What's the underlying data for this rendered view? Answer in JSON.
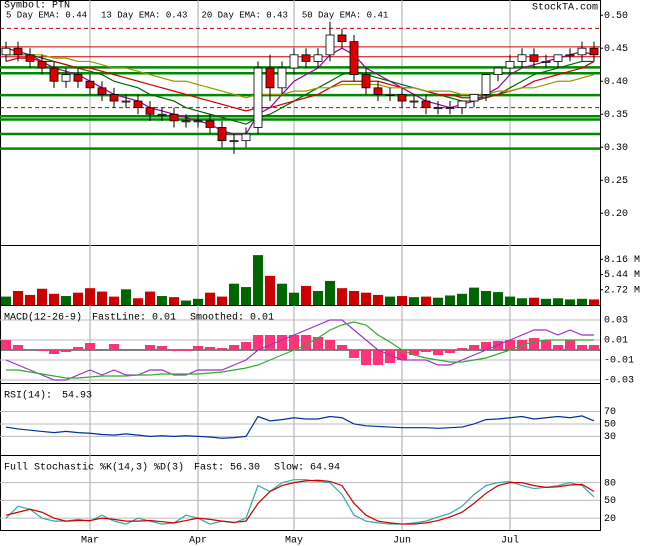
{
  "chart_data": [
    {
      "type": "candlestick",
      "title": "Symbol: PTN",
      "source": "StockTA.com",
      "grid": false,
      "up_color": "#ffffff",
      "down_color": "#dd0000",
      "ylim": [
        0.152,
        0.523
      ],
      "yticks": [
        {
          "value": 0.5,
          "label": "0.50"
        },
        0.45,
        {
          "value": 0.4,
          "label": "0.40"
        },
        0.35,
        {
          "value": 0.3,
          "label": "0.30"
        },
        0.25,
        {
          "value": 0.2,
          "label": "0.20"
        }
      ],
      "open": [
        0.44,
        0.45,
        0.44,
        0.43,
        0.42,
        0.4,
        0.41,
        0.4,
        0.39,
        0.38,
        0.37,
        0.37,
        0.36,
        0.35,
        0.35,
        0.34,
        0.34,
        0.34,
        0.33,
        0.31,
        0.31,
        0.33,
        0.42,
        0.39,
        0.42,
        0.44,
        0.43,
        0.44,
        0.47,
        0.46,
        0.41,
        0.39,
        0.38,
        0.38,
        0.37,
        0.37,
        0.36,
        0.36,
        0.36,
        0.37,
        0.38,
        0.41,
        0.42,
        0.43,
        0.44,
        0.43,
        0.43,
        0.44,
        0.44,
        0.45
      ],
      "high": [
        0.46,
        0.46,
        0.45,
        0.44,
        0.43,
        0.42,
        0.42,
        0.41,
        0.4,
        0.39,
        0.38,
        0.38,
        0.37,
        0.36,
        0.36,
        0.35,
        0.35,
        0.35,
        0.34,
        0.32,
        0.33,
        0.43,
        0.44,
        0.43,
        0.45,
        0.45,
        0.45,
        0.49,
        0.48,
        0.47,
        0.42,
        0.4,
        0.39,
        0.39,
        0.38,
        0.38,
        0.37,
        0.37,
        0.37,
        0.38,
        0.41,
        0.42,
        0.44,
        0.45,
        0.45,
        0.44,
        0.44,
        0.45,
        0.46,
        0.46
      ],
      "low": [
        0.43,
        0.43,
        0.42,
        0.41,
        0.39,
        0.39,
        0.39,
        0.38,
        0.37,
        0.36,
        0.36,
        0.35,
        0.34,
        0.34,
        0.33,
        0.33,
        0.33,
        0.32,
        0.3,
        0.29,
        0.3,
        0.32,
        0.37,
        0.38,
        0.41,
        0.42,
        0.42,
        0.43,
        0.45,
        0.4,
        0.38,
        0.37,
        0.37,
        0.36,
        0.36,
        0.35,
        0.35,
        0.35,
        0.35,
        0.36,
        0.37,
        0.4,
        0.41,
        0.42,
        0.42,
        0.42,
        0.42,
        0.43,
        0.43,
        0.43
      ],
      "close": [
        0.45,
        0.44,
        0.43,
        0.42,
        0.4,
        0.41,
        0.4,
        0.39,
        0.38,
        0.37,
        0.37,
        0.36,
        0.35,
        0.35,
        0.34,
        0.34,
        0.34,
        0.33,
        0.31,
        0.31,
        0.32,
        0.42,
        0.39,
        0.42,
        0.44,
        0.43,
        0.44,
        0.47,
        0.46,
        0.41,
        0.39,
        0.38,
        0.38,
        0.37,
        0.37,
        0.36,
        0.36,
        0.36,
        0.37,
        0.38,
        0.41,
        0.42,
        0.43,
        0.44,
        0.43,
        0.43,
        0.44,
        0.44,
        0.45,
        0.44
      ],
      "levels": [
        {
          "value": 0.48,
          "color": "#cc0000",
          "dash": true
        },
        {
          "value": 0.452,
          "color": "#cc0000",
          "dash": false
        },
        {
          "value": 0.437,
          "color": "#cc0000",
          "dash": false
        },
        {
          "value": 0.36,
          "color": "#cc0000",
          "dash": true
        },
        {
          "value": 0.421,
          "color": "#008800",
          "dash": false
        },
        {
          "value": 0.412,
          "color": "#008800",
          "dash": false
        },
        {
          "value": 0.379,
          "color": "#008800",
          "dash": false
        },
        {
          "value": 0.347,
          "color": "#008800",
          "dash": false
        },
        {
          "value": 0.342,
          "color": "#008800",
          "dash": false
        },
        {
          "value": 0.32,
          "color": "#008800",
          "dash": false
        },
        {
          "value": 0.298,
          "color": "#008800",
          "dash": false
        }
      ],
      "series": [
        {
          "name": "5 Day EMA: 0.44",
          "color": "#990099",
          "values": [
            0.45,
            0.445,
            0.44,
            0.43,
            0.42,
            0.415,
            0.41,
            0.4,
            0.39,
            0.38,
            0.375,
            0.37,
            0.36,
            0.355,
            0.35,
            0.345,
            0.34,
            0.335,
            0.325,
            0.32,
            0.32,
            0.35,
            0.36,
            0.38,
            0.4,
            0.41,
            0.42,
            0.44,
            0.45,
            0.44,
            0.42,
            0.41,
            0.4,
            0.39,
            0.38,
            0.37,
            0.365,
            0.36,
            0.365,
            0.37,
            0.38,
            0.39,
            0.41,
            0.42,
            0.425,
            0.43,
            0.435,
            0.44,
            0.445,
            0.44
          ]
        },
        {
          "name": "13 Day EMA: 0.43",
          "color": "#006600",
          "values": [
            0.44,
            0.44,
            0.44,
            0.435,
            0.43,
            0.425,
            0.42,
            0.415,
            0.41,
            0.4,
            0.395,
            0.39,
            0.38,
            0.375,
            0.37,
            0.36,
            0.355,
            0.35,
            0.345,
            0.34,
            0.335,
            0.345,
            0.35,
            0.36,
            0.37,
            0.38,
            0.39,
            0.4,
            0.41,
            0.415,
            0.41,
            0.405,
            0.4,
            0.395,
            0.39,
            0.385,
            0.38,
            0.375,
            0.37,
            0.37,
            0.375,
            0.38,
            0.39,
            0.4,
            0.41,
            0.415,
            0.42,
            0.425,
            0.43,
            0.43
          ]
        },
        {
          "name": "20 Day EMA: 0.43",
          "color": "#cc0000",
          "values": [
            0.43,
            0.435,
            0.435,
            0.43,
            0.43,
            0.425,
            0.42,
            0.42,
            0.415,
            0.41,
            0.405,
            0.4,
            0.395,
            0.39,
            0.385,
            0.38,
            0.375,
            0.37,
            0.365,
            0.36,
            0.355,
            0.36,
            0.36,
            0.365,
            0.37,
            0.375,
            0.38,
            0.39,
            0.4,
            0.4,
            0.4,
            0.4,
            0.395,
            0.39,
            0.39,
            0.385,
            0.38,
            0.38,
            0.375,
            0.375,
            0.375,
            0.38,
            0.385,
            0.39,
            0.4,
            0.405,
            0.41,
            0.415,
            0.42,
            0.43
          ]
        },
        {
          "name": "50 Day EMA: 0.41",
          "color": "#999900",
          "values": [
            0.44,
            0.44,
            0.44,
            0.44,
            0.435,
            0.435,
            0.43,
            0.43,
            0.425,
            0.42,
            0.42,
            0.415,
            0.41,
            0.405,
            0.4,
            0.4,
            0.395,
            0.39,
            0.385,
            0.38,
            0.375,
            0.38,
            0.38,
            0.38,
            0.385,
            0.385,
            0.39,
            0.39,
            0.395,
            0.395,
            0.395,
            0.395,
            0.39,
            0.39,
            0.39,
            0.385,
            0.385,
            0.385,
            0.38,
            0.38,
            0.38,
            0.385,
            0.385,
            0.39,
            0.39,
            0.395,
            0.4,
            0.4,
            0.405,
            0.41
          ]
        }
      ]
    },
    {
      "type": "bar",
      "grid": false,
      "up_color": "#006600",
      "down_color": "#cc0000",
      "ylim": [
        0,
        10.71
      ],
      "yticks": [
        {
          "value": 8.16,
          "label": "8.16 M"
        },
        {
          "value": 5.44,
          "label": "5.44 M"
        },
        {
          "value": 2.72,
          "label": "2.72 M"
        }
      ],
      "values": [
        1.5,
        2.5,
        1.8,
        2.9,
        2,
        1.6,
        2.2,
        3,
        2.4,
        1.5,
        2.8,
        1.2,
        2.4,
        1.6,
        1.4,
        0.8,
        1.1,
        2.2,
        1.5,
        3.8,
        3.2,
        8.9,
        5.2,
        3.8,
        2.2,
        3.4,
        2.5,
        4.3,
        3,
        2.5,
        2.2,
        1.8,
        1.5,
        1.6,
        1.4,
        1.5,
        1.3,
        1.7,
        2,
        3.1,
        2.5,
        2.3,
        1.5,
        1.2,
        1.3,
        1.1,
        1.2,
        1.0,
        1.1,
        1.0
      ]
    },
    {
      "type": "line",
      "title": "MACD(12-26-9)",
      "grid": true,
      "ylim": [
        -0.033,
        0.045
      ],
      "yticks": [
        0.03,
        0.01,
        -0.01,
        -0.03
      ],
      "histogram": {
        "color": "#ff3377",
        "values": [
          0.01,
          0.005,
          0,
          -0.001,
          -0.004,
          -0.002,
          0.003,
          0.007,
          0.001,
          0.006,
          0.001,
          0,
          0.005,
          0.004,
          -0.001,
          -0.001,
          0.004,
          0.003,
          0.002,
          0.005,
          0.008,
          0.015,
          0.015,
          0.015,
          0.015,
          0.015,
          0.013,
          0.01,
          0.005,
          -0.008,
          -0.015,
          -0.015,
          -0.013,
          -0.01,
          -0.005,
          -0.002,
          -0.005,
          -0.003,
          0.002,
          0.005,
          0.008,
          0.009,
          0.01,
          0.01,
          0.012,
          0.01,
          0.005,
          0.01,
          0.005,
          0.005
        ]
      },
      "series": [
        {
          "name": "FastLine: 0.01",
          "color": "#9933cc",
          "values": [
            -0.01,
            -0.015,
            -0.02,
            -0.025,
            -0.03,
            -0.03,
            -0.025,
            -0.02,
            -0.025,
            -0.02,
            -0.025,
            -0.025,
            -0.02,
            -0.02,
            -0.025,
            -0.025,
            -0.02,
            -0.02,
            -0.02,
            -0.015,
            -0.01,
            0.0,
            0.005,
            0.01,
            0.015,
            0.02,
            0.025,
            0.03,
            0.03,
            0.02,
            0.01,
            0.0,
            -0.005,
            -0.01,
            -0.01,
            -0.01,
            -0.015,
            -0.015,
            -0.01,
            -0.005,
            0.0,
            0.005,
            0.01,
            0.015,
            0.02,
            0.02,
            0.015,
            0.02,
            0.015,
            0.015
          ]
        },
        {
          "name": "Smoothed: 0.01",
          "color": "#33aa33",
          "values": [
            -0.02,
            -0.02,
            -0.022,
            -0.024,
            -0.026,
            -0.028,
            -0.028,
            -0.027,
            -0.026,
            -0.026,
            -0.026,
            -0.025,
            -0.025,
            -0.024,
            -0.024,
            -0.024,
            -0.024,
            -0.023,
            -0.022,
            -0.02,
            -0.018,
            -0.015,
            -0.01,
            -0.005,
            0.0,
            0.005,
            0.012,
            0.02,
            0.025,
            0.028,
            0.025,
            0.015,
            0.008,
            0.0,
            -0.005,
            -0.008,
            -0.01,
            -0.012,
            -0.012,
            -0.01,
            -0.008,
            -0.004,
            0.0,
            0.005,
            0.008,
            0.01,
            0.01,
            0.01,
            0.01,
            0.01
          ]
        }
      ]
    },
    {
      "type": "line",
      "title": "RSI(14):",
      "grid": true,
      "ylim": [
        0,
        116
      ],
      "yticks": [
        70,
        50,
        30
      ],
      "series": [
        {
          "name": "54.93",
          "color": "#003399",
          "values": [
            45,
            42,
            40,
            38,
            36,
            38,
            36,
            35,
            33,
            32,
            34,
            32,
            30,
            31,
            30,
            31,
            30,
            29,
            27,
            28,
            30,
            62,
            55,
            57,
            60,
            58,
            58,
            62,
            60,
            50,
            47,
            46,
            45,
            44,
            44,
            44,
            43,
            44,
            45,
            50,
            57,
            58,
            60,
            62,
            58,
            60,
            62,
            60,
            63,
            55
          ]
        }
      ]
    },
    {
      "type": "line",
      "title": "Full Stochastic %K(14,3) %D(3)",
      "grid": true,
      "ylim": [
        0,
        126.7
      ],
      "yticks": [
        80,
        50,
        20
      ],
      "categories": [
        null,
        null,
        null,
        null,
        null,
        null,
        null,
        "Mar",
        null,
        null,
        null,
        null,
        null,
        null,
        null,
        null,
        "Apr",
        null,
        null,
        null,
        null,
        null,
        null,
        null,
        "May",
        null,
        null,
        null,
        null,
        null,
        null,
        null,
        null,
        "Jun",
        null,
        null,
        null,
        null,
        null,
        null,
        null,
        null,
        "Jul",
        null,
        null,
        null,
        null,
        null,
        null,
        null
      ],
      "series": [
        {
          "name": "Fast: 56.30",
          "color": "#33aaaa",
          "values": [
            20,
            40,
            35,
            20,
            15,
            15,
            18,
            15,
            25,
            15,
            10,
            20,
            15,
            10,
            12,
            25,
            20,
            10,
            15,
            12,
            20,
            75,
            65,
            80,
            85,
            85,
            82,
            80,
            60,
            25,
            15,
            12,
            10,
            10,
            12,
            15,
            22,
            28,
            40,
            60,
            75,
            80,
            82,
            75,
            70,
            72,
            75,
            80,
            75,
            56
          ]
        },
        {
          "name": "Slow: 64.94",
          "color": "#cc0000",
          "values": [
            25,
            30,
            35,
            30,
            20,
            15,
            16,
            16,
            20,
            18,
            15,
            15,
            16,
            14,
            12,
            16,
            20,
            18,
            15,
            13,
            15,
            45,
            65,
            75,
            80,
            83,
            84,
            82,
            75,
            45,
            25,
            15,
            12,
            10,
            10,
            12,
            16,
            22,
            30,
            45,
            62,
            75,
            80,
            80,
            75,
            72,
            73,
            76,
            77,
            65
          ]
        }
      ]
    }
  ]
}
